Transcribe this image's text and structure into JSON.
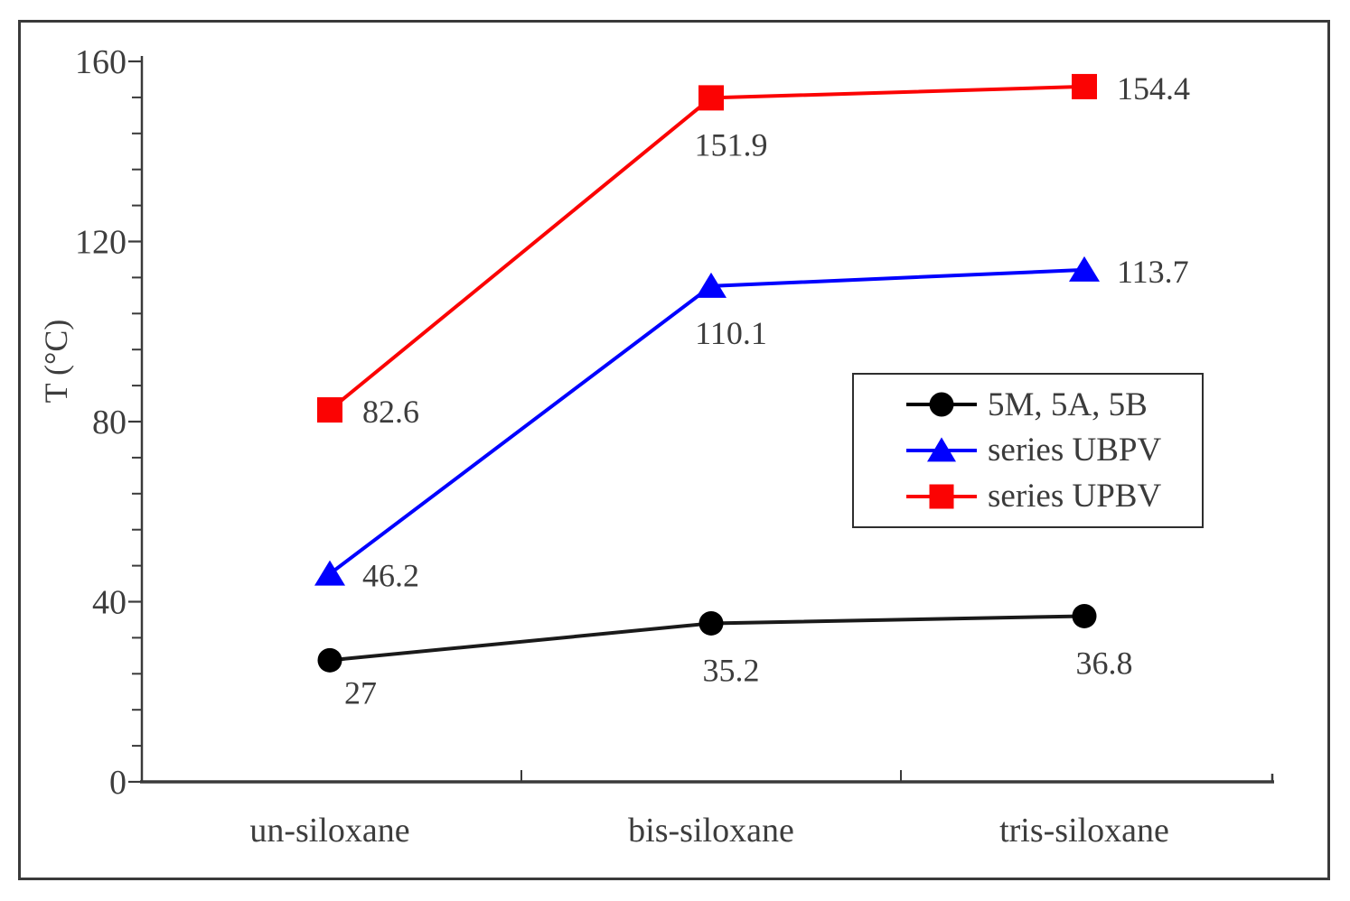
{
  "figure": {
    "background": "#ffffff",
    "border_color": "#3a3a3a"
  },
  "chart_data": {
    "type": "line",
    "title": "",
    "xlabel": "",
    "ylabel": "T (°C)",
    "categories": [
      "un-siloxane",
      "bis-siloxane",
      "tris-siloxane"
    ],
    "series": [
      {
        "name": "5M, 5A, 5B",
        "marker": "circle",
        "color": "#000000",
        "line_color": "#1a1a1a",
        "values": [
          27,
          35.2,
          36.8
        ],
        "point_labels": [
          "27",
          "35.2",
          "36.8"
        ],
        "label_placements": [
          "below-right",
          "below",
          "below"
        ]
      },
      {
        "name": "series UBPV",
        "marker": "triangle",
        "color": "#0000fe",
        "line_color": "#0000fe",
        "values": [
          46.2,
          110.1,
          113.7
        ],
        "point_labels": [
          "46.2",
          "110.1",
          "113.7"
        ],
        "label_placements": [
          "right",
          "below",
          "right"
        ]
      },
      {
        "name": "series UPBV",
        "marker": "square",
        "color": "#fb0303",
        "line_color": "#fb0303",
        "values": [
          82.6,
          151.9,
          154.4
        ],
        "point_labels": [
          "82.6",
          "151.9",
          "154.4"
        ],
        "label_placements": [
          "right",
          "below",
          "right"
        ]
      }
    ],
    "ylim": [
      0,
      160
    ],
    "y_major_ticks": [
      0,
      40,
      80,
      120,
      160
    ],
    "y_tick_labels": [
      "0",
      "40",
      "80",
      "120",
      "160"
    ],
    "y_minor_step": 8,
    "grid": false,
    "legend_position": "middle-right",
    "text_color": "#3d3d3d",
    "axis_color": "#3a3a3a"
  },
  "legend": {
    "items": [
      {
        "label": "5M, 5A, 5B",
        "marker": "circle",
        "color": "#000000"
      },
      {
        "label": "series UBPV",
        "marker": "triangle",
        "color": "#0000fe"
      },
      {
        "label": "series UPBV",
        "marker": "square",
        "color": "#fb0303"
      }
    ]
  }
}
